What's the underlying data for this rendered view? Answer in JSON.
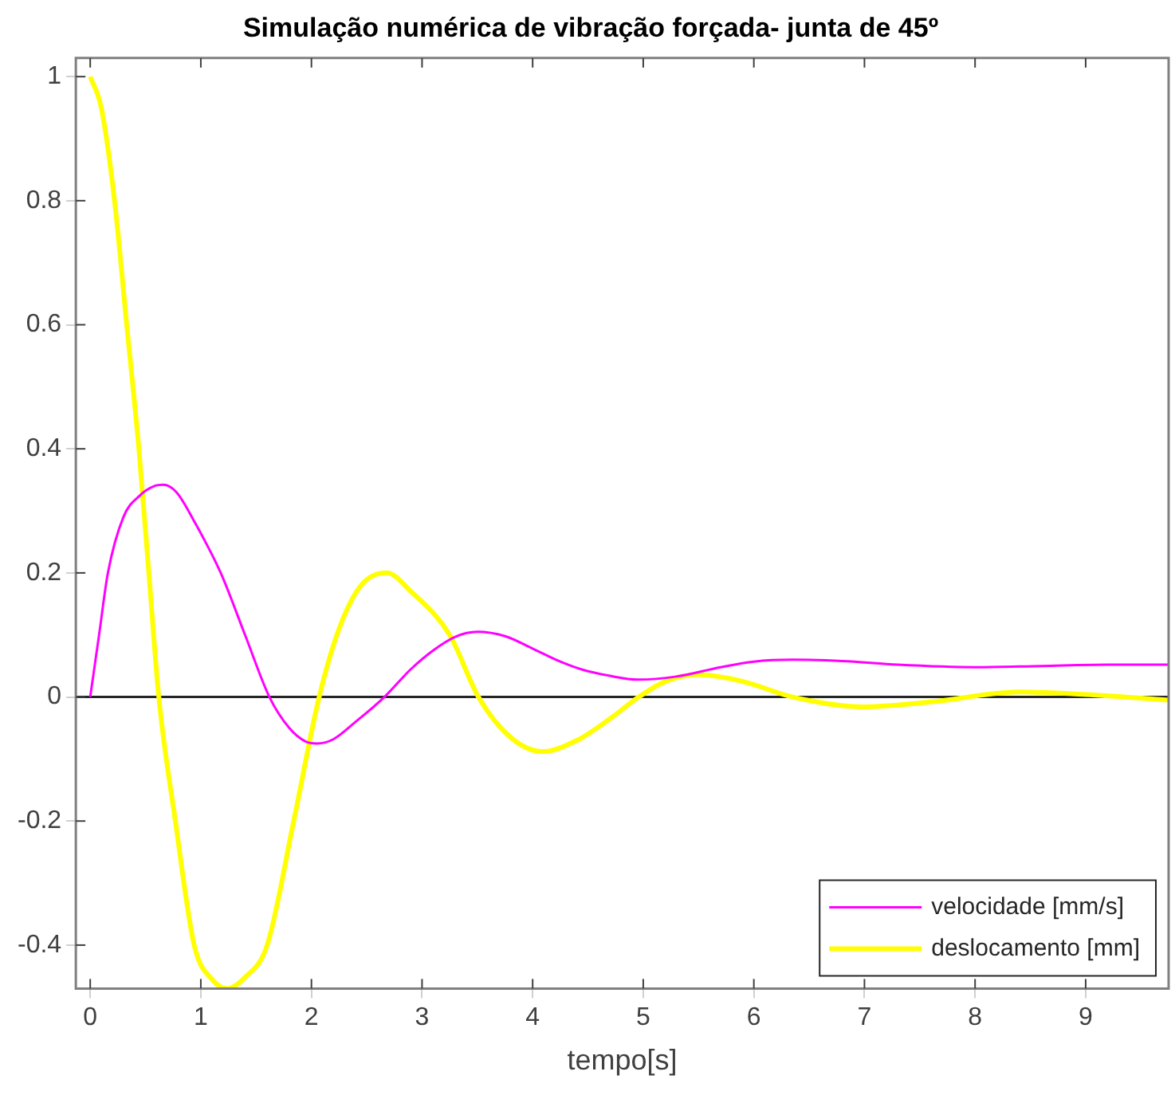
{
  "chart_data": {
    "type": "line",
    "title": "Simulação numérica de vibração forçada- junta de 45º",
    "xlabel": "tempo[s]",
    "xlim": [
      -0.13,
      9.75
    ],
    "xticks": [
      0,
      1,
      2,
      3,
      4,
      5,
      6,
      7,
      8,
      9
    ],
    "ylim": [
      -0.47,
      1.03
    ],
    "yticks": [
      -0.4,
      -0.2,
      0,
      0.2,
      0.4,
      0.6,
      0.8,
      1
    ],
    "grid": false,
    "legend": "bottom right",
    "marker": "none",
    "line_style": "solid",
    "ref_lines": [
      {
        "axis": "y",
        "value": 0,
        "color": "#262626"
      }
    ],
    "series": [
      {
        "name": "velocidade [mm/s]",
        "color": "#ff00ff",
        "x": [
          0,
          0.08,
          0.16,
          0.3,
          0.45,
          0.58,
          0.66,
          0.78,
          0.95,
          1.18,
          1.4,
          1.62,
          1.8,
          1.95,
          2.05,
          2.2,
          2.4,
          2.66,
          2.9,
          3.1,
          3.3,
          3.5,
          3.75,
          4.0,
          4.25,
          4.45,
          4.7,
          4.95,
          5.3,
          5.7,
          6.0,
          6.35,
          6.8,
          7.3,
          8.0,
          8.6,
          9.2,
          9.75
        ],
        "values": [
          0,
          0.1,
          0.2,
          0.29,
          0.325,
          0.34,
          0.342,
          0.33,
          0.28,
          0.2,
          0.1,
          0,
          -0.05,
          -0.072,
          -0.075,
          -0.068,
          -0.04,
          0,
          0.045,
          0.075,
          0.097,
          0.105,
          0.098,
          0.078,
          0.057,
          0.044,
          0.034,
          0.028,
          0.033,
          0.048,
          0.057,
          0.06,
          0.058,
          0.052,
          0.048,
          0.05,
          0.052,
          0.052
        ]
      },
      {
        "name": "deslocamento [mm]",
        "color": "#ffff00",
        "x": [
          0,
          0.1,
          0.22,
          0.33,
          0.44,
          0.53,
          0.62,
          0.77,
          0.94,
          1.1,
          1.24,
          1.4,
          1.6,
          1.84,
          2.07,
          2.25,
          2.45,
          2.68,
          2.9,
          3.25,
          3.51,
          3.8,
          4.09,
          4.4,
          4.7,
          4.96,
          5.2,
          5.5,
          5.9,
          6.35,
          6.99,
          7.6,
          8.4,
          9.0,
          9.75
        ],
        "values": [
          1,
          0.95,
          0.8,
          0.6,
          0.4,
          0.2,
          0,
          -0.2,
          -0.4,
          -0.455,
          -0.47,
          -0.452,
          -0.4,
          -0.2,
          0,
          0.11,
          0.18,
          0.2,
          0.17,
          0.1,
          0,
          -0.065,
          -0.088,
          -0.07,
          -0.035,
          0,
          0.025,
          0.036,
          0.025,
          0,
          -0.016,
          -0.008,
          0.008,
          0.004,
          -0.005
        ]
      }
    ]
  }
}
